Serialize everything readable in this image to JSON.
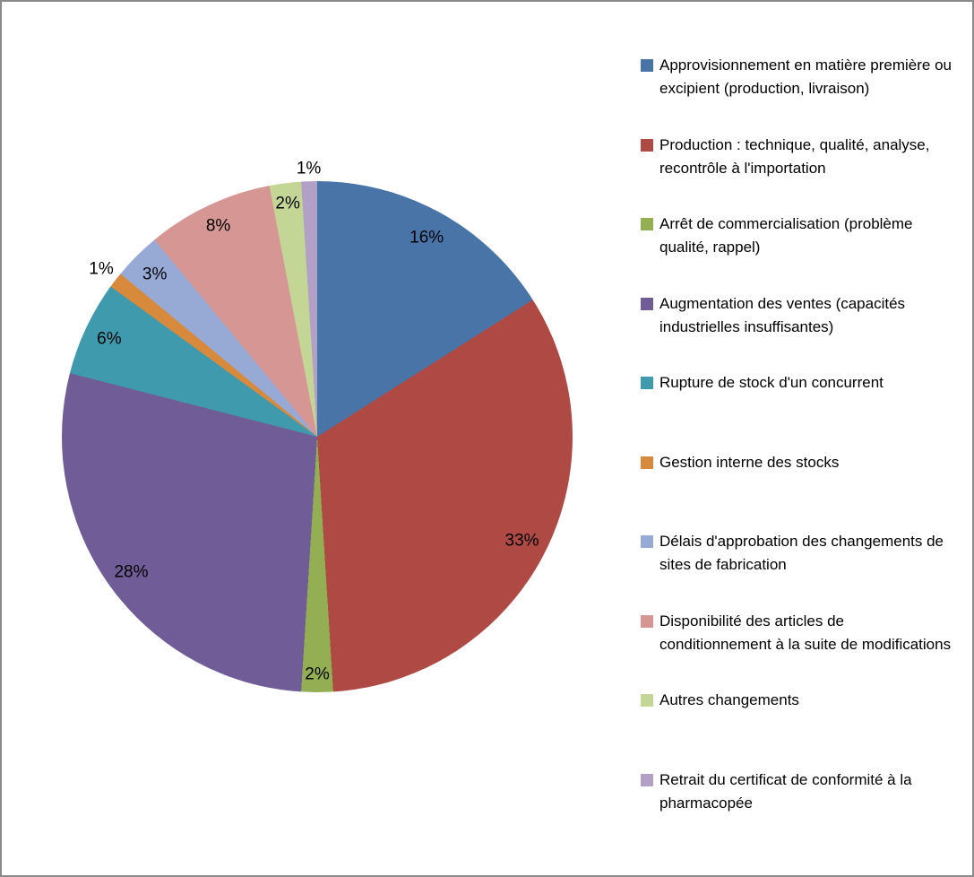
{
  "frame": {
    "border_color": "#8a8a8a",
    "background": "#ffffff"
  },
  "chart_data": {
    "type": "pie",
    "title": "",
    "legend_position": "right",
    "start_angle_deg_from_top": 0,
    "direction": "clockwise",
    "grid": false,
    "slices": [
      {
        "label": "Approvisionnement en matière première ou excipient (production, livraison)",
        "value": 16,
        "data_label": "16%",
        "color": "#4874A8",
        "label_r": 0.89
      },
      {
        "label": "Production : technique, qualité, analyse, recontrôle à l'importation",
        "value": 33,
        "data_label": "33%",
        "color": "#AE4A43",
        "label_r": 0.9
      },
      {
        "label": "Arrêt de commercialisation (problème qualité, rappel)",
        "value": 2,
        "data_label": "2%",
        "color": "#94AF53",
        "label_r": 0.93
      },
      {
        "label": "Augmentation des ventes (capacités industrielles insuffisantes)",
        "value": 28,
        "data_label": "28%",
        "color": "#705C96",
        "label_r": 0.9
      },
      {
        "label": "Rupture de stock d'un concurrent",
        "value": 6,
        "data_label": "6%",
        "color": "#3F9AAD",
        "label_r": 0.9
      },
      {
        "label": "Gestion interne des stocks",
        "value": 1,
        "data_label": "1%",
        "color": "#D88A3C",
        "label_r": 1.07
      },
      {
        "label": "Délais d'approbation des changements de sites de fabrication",
        "value": 3,
        "data_label": "3%",
        "color": "#97AAD5",
        "label_r": 0.9
      },
      {
        "label": "Disponibilité des articles de conditionnement à la suite de modifications",
        "value": 8,
        "data_label": "8%",
        "color": "#D69694",
        "label_r": 0.91
      },
      {
        "label": "Autres changements",
        "value": 2,
        "data_label": "2%",
        "color": "#C4D696",
        "label_r": 0.92
      },
      {
        "label": "Retrait du certificat de conformité à la pharmacopée",
        "value": 1,
        "data_label": "1%",
        "color": "#B2A0C6",
        "label_r": 1.05
      }
    ],
    "data_label_color": "#000000",
    "legend_text_color": "#000000"
  }
}
